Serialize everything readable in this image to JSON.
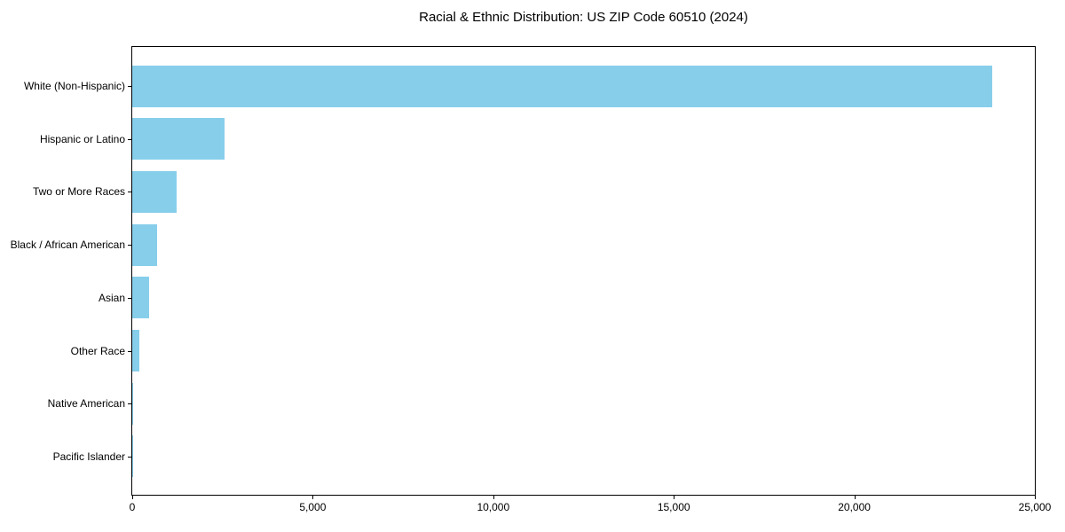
{
  "chart_data": {
    "type": "bar",
    "orientation": "horizontal",
    "title": "Racial & Ethnic Distribution: US ZIP Code 60510 (2024)",
    "categories": [
      "White (Non-Hispanic)",
      "Hispanic or Latino",
      "Two or More Races",
      "Black / African American",
      "Asian",
      "Other Race",
      "Native American",
      "Pacific Islander"
    ],
    "values": [
      23810,
      2550,
      1230,
      690,
      465,
      195,
      10,
      3
    ],
    "xlabel": "",
    "ylabel": "",
    "xlim": [
      0,
      25000
    ],
    "xticks": [
      0,
      5000,
      10000,
      15000,
      20000,
      25000
    ],
    "xtick_labels": [
      "0",
      "5,000",
      "10,000",
      "15,000",
      "20,000",
      "25,000"
    ],
    "grid": false,
    "legend": null,
    "bar_color": "#87CEEB"
  },
  "colors": {
    "background": "#ffffff",
    "spine": "#000000",
    "text": "#000000",
    "bar": "#87CEEB"
  }
}
